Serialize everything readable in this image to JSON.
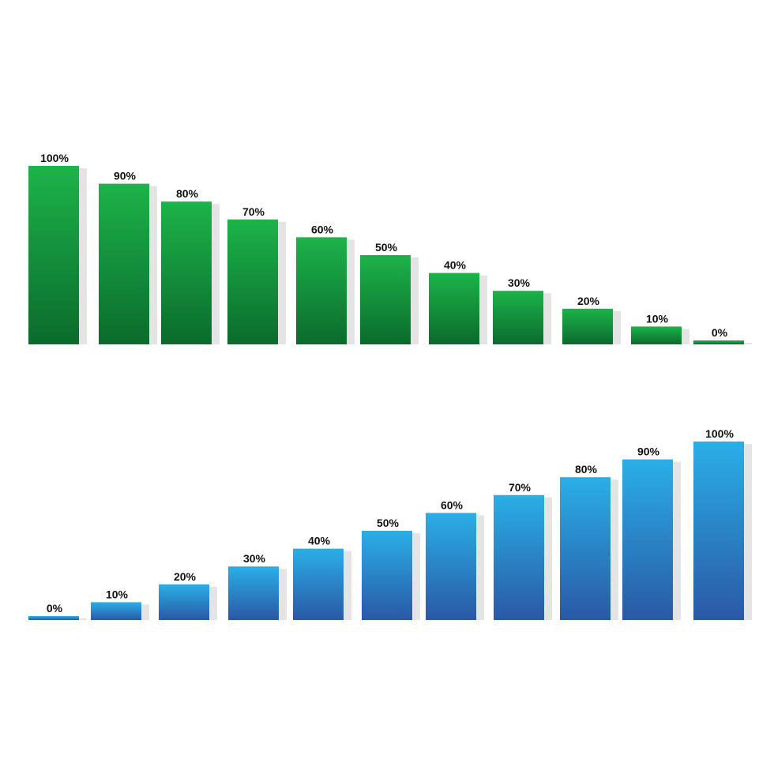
{
  "chart_data": [
    {
      "type": "bar",
      "categories": [
        "100%",
        "90%",
        "80%",
        "70%",
        "60%",
        "50%",
        "40%",
        "30%",
        "20%",
        "10%",
        "0%"
      ],
      "values": [
        100,
        90,
        80,
        70,
        60,
        50,
        40,
        30,
        20,
        10,
        0
      ],
      "ylim": [
        0,
        100
      ],
      "grid": false,
      "colors": {
        "top": "#1db34a",
        "bottom": "#0a6b2c",
        "shadow": "#e4e4e4"
      }
    },
    {
      "type": "bar",
      "categories": [
        "0%",
        "10%",
        "20%",
        "30%",
        "40%",
        "50%",
        "60%",
        "70%",
        "80%",
        "90%",
        "100%"
      ],
      "values": [
        0,
        10,
        20,
        30,
        40,
        50,
        60,
        70,
        80,
        90,
        100
      ],
      "ylim": [
        0,
        100
      ],
      "grid": false,
      "colors": {
        "top": "#2aafe6",
        "bottom": "#2a58a6",
        "shadow": "#e4e4e4"
      }
    }
  ]
}
